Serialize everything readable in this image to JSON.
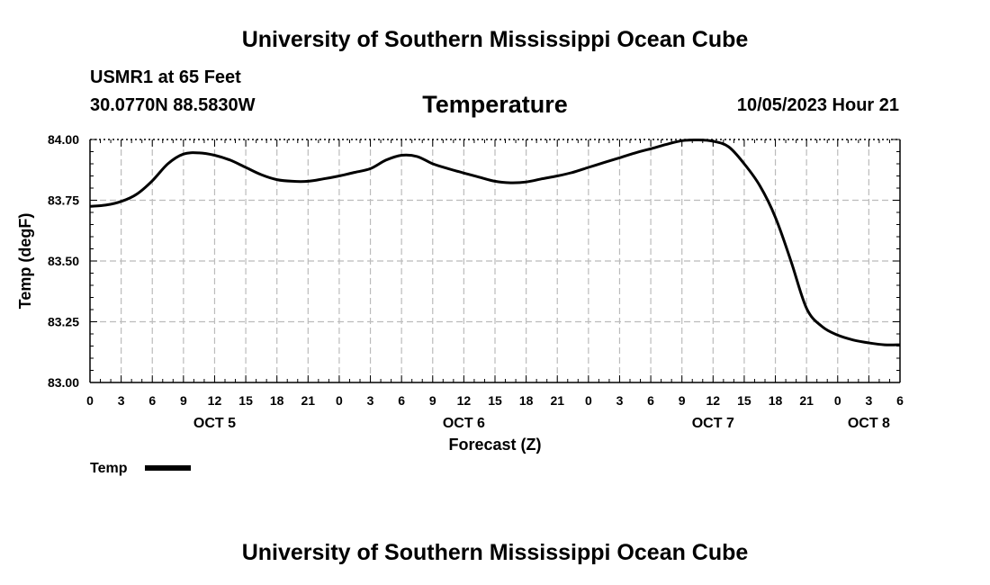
{
  "header": {
    "title": "University of Southern Mississippi Ocean Cube",
    "station": "USMR1 at 65 Feet",
    "coords": "30.0770N  88.5830W",
    "variable": "Temperature",
    "datetime": "10/05/2023 Hour 21"
  },
  "footer": {
    "title": "University of Southern Mississippi Ocean Cube"
  },
  "chart_data": {
    "type": "line",
    "title": "Temperature",
    "xlabel": "Forecast (Z)",
    "ylabel": "Temp (degF)",
    "ylim": [
      83.0,
      84.0
    ],
    "xlim": [
      0,
      78
    ],
    "x_units": "hours since OCT 5 00Z",
    "yticks": [
      "83.00",
      "83.25",
      "83.50",
      "83.75",
      "84.00"
    ],
    "ytick_values": [
      83.0,
      83.25,
      83.5,
      83.75,
      84.0
    ],
    "xticks": [
      "0",
      "3",
      "6",
      "9",
      "12",
      "15",
      "18",
      "21",
      "0",
      "3",
      "6",
      "9",
      "12",
      "15",
      "18",
      "21",
      "0",
      "3",
      "6",
      "9",
      "12",
      "15",
      "18",
      "21",
      "0",
      "3",
      "6"
    ],
    "date_labels": [
      {
        "label": "OCT 5",
        "hour": 12
      },
      {
        "label": "OCT 6",
        "hour": 36
      },
      {
        "label": "OCT 7",
        "hour": 60
      },
      {
        "label": "OCT 8",
        "hour": 75
      }
    ],
    "grid": true,
    "legend": {
      "position": "bottom-left",
      "label": "Temp"
    },
    "series": [
      {
        "name": "Temp",
        "color": "#000000",
        "x": [
          0,
          1.5,
          3,
          4.5,
          6,
          7.5,
          9,
          10.5,
          12,
          13.5,
          15,
          16.5,
          18,
          19.5,
          21,
          22.5,
          24,
          25.5,
          27,
          28.5,
          30,
          31.5,
          33,
          34.5,
          36,
          37.5,
          39,
          40.5,
          42,
          43.5,
          45,
          46.5,
          48,
          49.5,
          51,
          52.5,
          54,
          55.5,
          57,
          58.5,
          60,
          61.5,
          63,
          64.5,
          66,
          67.5,
          69,
          70.5,
          72,
          73.5,
          75,
          76.5,
          78
        ],
        "values": [
          83.725,
          83.73,
          83.745,
          83.775,
          83.83,
          83.9,
          83.94,
          83.945,
          83.935,
          83.915,
          83.885,
          83.855,
          83.835,
          83.828,
          83.828,
          83.838,
          83.85,
          83.865,
          83.88,
          83.915,
          83.935,
          83.93,
          83.9,
          83.88,
          83.862,
          83.845,
          83.828,
          83.822,
          83.825,
          83.838,
          83.85,
          83.865,
          83.885,
          83.905,
          83.925,
          83.945,
          83.962,
          83.98,
          83.995,
          83.998,
          83.993,
          83.97,
          83.9,
          83.81,
          83.68,
          83.5,
          83.305,
          83.23,
          83.195,
          83.175,
          83.163,
          83.155,
          83.155
        ]
      }
    ]
  }
}
